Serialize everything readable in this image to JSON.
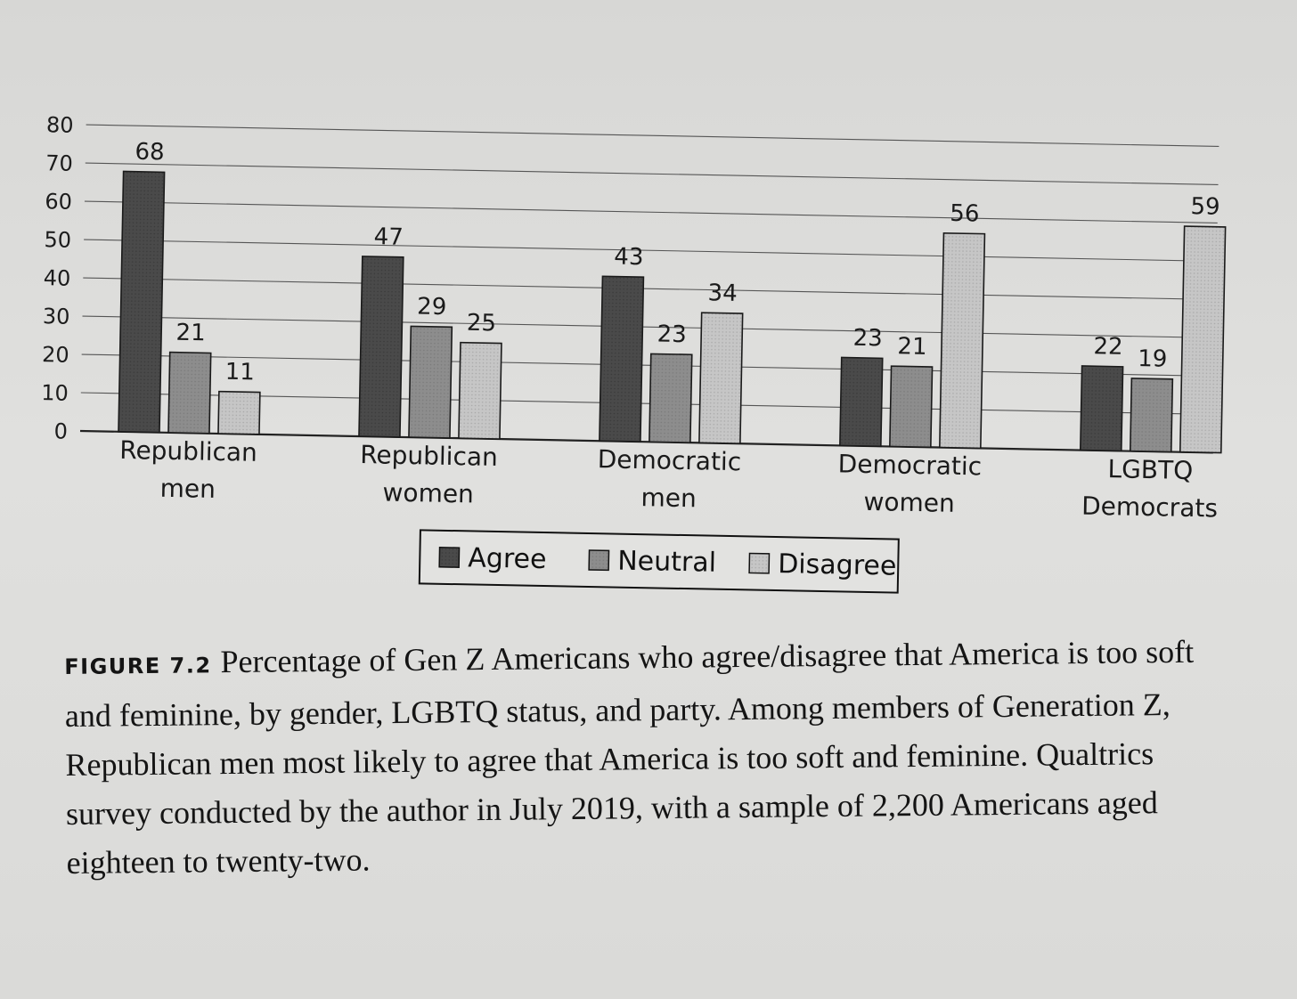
{
  "chart_data": {
    "type": "bar",
    "categories": [
      [
        "Republican",
        "men"
      ],
      [
        "Republican",
        "women"
      ],
      [
        "Democratic",
        "men"
      ],
      [
        "Democratic",
        "women"
      ],
      [
        "LGBTQ",
        "Democrats"
      ]
    ],
    "series": [
      {
        "name": "Agree",
        "color": "#4a4a4a",
        "values": [
          68,
          47,
          43,
          23,
          22
        ]
      },
      {
        "name": "Neutral",
        "color": "#8b8b8b",
        "values": [
          21,
          29,
          23,
          21,
          19
        ]
      },
      {
        "name": "Disagree",
        "color": "#c2c2c2",
        "values": [
          11,
          25,
          34,
          56,
          59
        ]
      }
    ],
    "data_labels": [
      [
        "68",
        "21",
        "11"
      ],
      [
        "47",
        "29",
        "25"
      ],
      [
        "43",
        "23",
        "34"
      ],
      [
        "23",
        "21",
        "56"
      ],
      [
        "22",
        "19",
        "59"
      ]
    ],
    "y_ticks": [
      0,
      10,
      20,
      30,
      40,
      50,
      60,
      70,
      80
    ],
    "ylim": [
      0,
      80
    ],
    "grid": true,
    "legend_position": "bottom-center"
  },
  "caption": {
    "label": "FIGURE 7.2",
    "text": "Percentage of Gen Z Americans who agree/disagree that America is too soft and feminine, by gender, LGBTQ status, and party. Among members of Generation Z, Republican men most likely to agree that America is too soft and feminine. Qualtrics survey conducted by the author in July 2019, with a sample of 2,200 Americans aged eighteen to twenty-two."
  }
}
